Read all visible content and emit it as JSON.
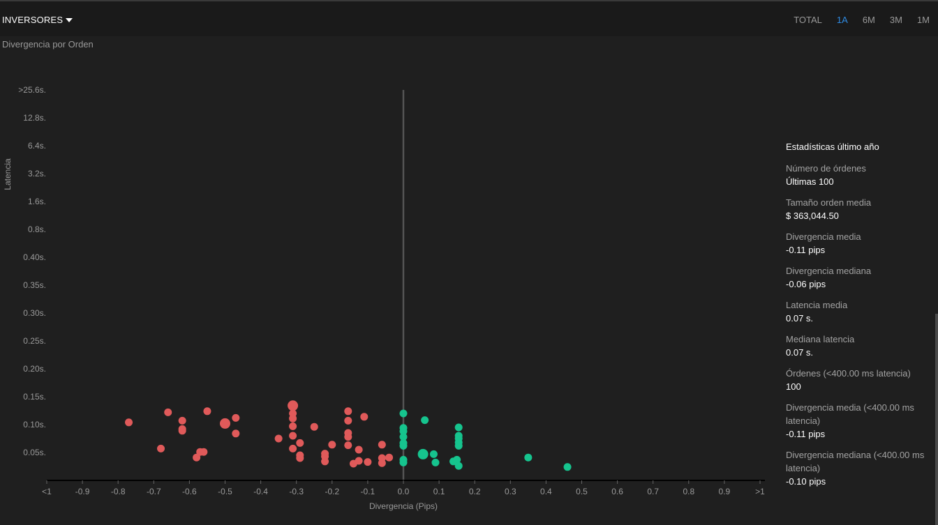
{
  "header": {
    "investors_label": "INVERSORES",
    "periods": [
      {
        "label": "TOTAL",
        "active": false
      },
      {
        "label": "1A",
        "active": true
      },
      {
        "label": "6M",
        "active": false
      },
      {
        "label": "3M",
        "active": false
      },
      {
        "label": "1M",
        "active": false
      }
    ]
  },
  "subtitle": "Divergencia por Orden",
  "chart_data": {
    "type": "scatter",
    "title": "Divergencia por Orden",
    "xlabel": "Divergencia (Pips)",
    "ylabel": "Latencia",
    "x_ticks": [
      "<1",
      "-0.9",
      "-0.8",
      "-0.7",
      "-0.6",
      "-0.5",
      "-0.4",
      "-0.3",
      "-0.2",
      "-0.1",
      "0.0",
      "0.1",
      "0.2",
      "0.3",
      "0.4",
      "0.5",
      "0.6",
      "0.7",
      "0.8",
      "0.9",
      ">1"
    ],
    "y_ticks": [
      "0.05s.",
      "0.10s.",
      "0.15s.",
      "0.20s.",
      "0.25s.",
      "0.30s.",
      "0.35s.",
      "0.40s.",
      "0.8s.",
      "1.6s.",
      "3.2s.",
      "6.4s.",
      "12.8s.",
      ">25.6s."
    ],
    "xlim": [
      -1,
      1
    ],
    "colors": {
      "negative": "#e05a5a",
      "positive": "#16c48e",
      "zero_line": "#555555",
      "axis": "#000000"
    },
    "points": [
      {
        "x": -0.77,
        "y": 0.104,
        "big": false
      },
      {
        "x": -0.68,
        "y": 0.057,
        "big": false
      },
      {
        "x": -0.66,
        "y": 0.122,
        "big": false
      },
      {
        "x": -0.62,
        "y": 0.107,
        "big": false
      },
      {
        "x": -0.62,
        "y": 0.092,
        "big": false
      },
      {
        "x": -0.62,
        "y": 0.089,
        "big": false
      },
      {
        "x": -0.58,
        "y": 0.041,
        "big": false
      },
      {
        "x": -0.57,
        "y": 0.051,
        "big": false
      },
      {
        "x": -0.56,
        "y": 0.051,
        "big": false
      },
      {
        "x": -0.55,
        "y": 0.124,
        "big": false
      },
      {
        "x": -0.5,
        "y": 0.102,
        "big": true
      },
      {
        "x": -0.47,
        "y": 0.112,
        "big": false
      },
      {
        "x": -0.47,
        "y": 0.084,
        "big": false
      },
      {
        "x": -0.35,
        "y": 0.075,
        "big": false
      },
      {
        "x": -0.31,
        "y": 0.134,
        "big": true
      },
      {
        "x": -0.31,
        "y": 0.12,
        "big": false
      },
      {
        "x": -0.31,
        "y": 0.111,
        "big": false
      },
      {
        "x": -0.31,
        "y": 0.097,
        "big": false
      },
      {
        "x": -0.31,
        "y": 0.08,
        "big": false
      },
      {
        "x": -0.31,
        "y": 0.057,
        "big": false
      },
      {
        "x": -0.29,
        "y": 0.067,
        "big": false
      },
      {
        "x": -0.29,
        "y": 0.045,
        "big": false
      },
      {
        "x": -0.29,
        "y": 0.04,
        "big": false
      },
      {
        "x": -0.25,
        "y": 0.096,
        "big": false
      },
      {
        "x": -0.22,
        "y": 0.048,
        "big": false
      },
      {
        "x": -0.22,
        "y": 0.043,
        "big": false
      },
      {
        "x": -0.22,
        "y": 0.034,
        "big": false
      },
      {
        "x": -0.2,
        "y": 0.064,
        "big": false
      },
      {
        "x": -0.155,
        "y": 0.124,
        "big": false
      },
      {
        "x": -0.155,
        "y": 0.107,
        "big": false
      },
      {
        "x": -0.155,
        "y": 0.085,
        "big": false
      },
      {
        "x": -0.155,
        "y": 0.078,
        "big": false
      },
      {
        "x": -0.155,
        "y": 0.063,
        "big": false
      },
      {
        "x": -0.14,
        "y": 0.03,
        "big": false
      },
      {
        "x": -0.125,
        "y": 0.035,
        "big": false
      },
      {
        "x": -0.125,
        "y": 0.055,
        "big": false
      },
      {
        "x": -0.11,
        "y": 0.114,
        "big": false
      },
      {
        "x": -0.1,
        "y": 0.033,
        "big": false
      },
      {
        "x": -0.06,
        "y": 0.064,
        "big": false
      },
      {
        "x": -0.06,
        "y": 0.04,
        "big": false
      },
      {
        "x": -0.06,
        "y": 0.031,
        "big": false
      },
      {
        "x": -0.04,
        "y": 0.041,
        "big": false
      },
      {
        "x": 0.0,
        "y": 0.12,
        "big": false
      },
      {
        "x": 0.0,
        "y": 0.094,
        "big": false
      },
      {
        "x": 0.0,
        "y": 0.088,
        "big": false
      },
      {
        "x": 0.0,
        "y": 0.078,
        "big": false
      },
      {
        "x": 0.0,
        "y": 0.067,
        "big": false
      },
      {
        "x": 0.0,
        "y": 0.062,
        "big": false
      },
      {
        "x": 0.0,
        "y": 0.037,
        "big": false
      },
      {
        "x": 0.0,
        "y": 0.032,
        "big": false
      },
      {
        "x": 0.055,
        "y": 0.047,
        "big": true
      },
      {
        "x": 0.06,
        "y": 0.108,
        "big": false
      },
      {
        "x": 0.085,
        "y": 0.047,
        "big": false
      },
      {
        "x": 0.09,
        "y": 0.032,
        "big": false
      },
      {
        "x": 0.14,
        "y": 0.034,
        "big": false
      },
      {
        "x": 0.15,
        "y": 0.037,
        "big": false
      },
      {
        "x": 0.155,
        "y": 0.095,
        "big": false
      },
      {
        "x": 0.155,
        "y": 0.08,
        "big": false
      },
      {
        "x": 0.155,
        "y": 0.075,
        "big": false
      },
      {
        "x": 0.155,
        "y": 0.068,
        "big": false
      },
      {
        "x": 0.155,
        "y": 0.062,
        "big": false
      },
      {
        "x": 0.155,
        "y": 0.026,
        "big": false
      },
      {
        "x": 0.35,
        "y": 0.041,
        "big": false
      },
      {
        "x": 0.46,
        "y": 0.024,
        "big": false
      }
    ]
  },
  "stats": {
    "title": "Estadísticas último año",
    "items": [
      {
        "label": "Número de órdenes",
        "value": "Últimas 100"
      },
      {
        "label": "Tamaño orden media",
        "value": "$ 363,044.50"
      },
      {
        "label": "Divergencia media",
        "value": "-0.11 pips"
      },
      {
        "label": "Divergencia mediana",
        "value": "-0.06 pips"
      },
      {
        "label": "Latencia media",
        "value": "0.07 s."
      },
      {
        "label": "Mediana latencia",
        "value": "0.07 s."
      },
      {
        "label": "Órdenes (<400.00 ms latencia)",
        "value": "100"
      },
      {
        "label": "Divergencia media (<400.00 ms latencia)",
        "value": "-0.11 pips"
      },
      {
        "label": "Divergencia mediana (<400.00 ms latencia)",
        "value": "-0.10 pips"
      }
    ]
  }
}
